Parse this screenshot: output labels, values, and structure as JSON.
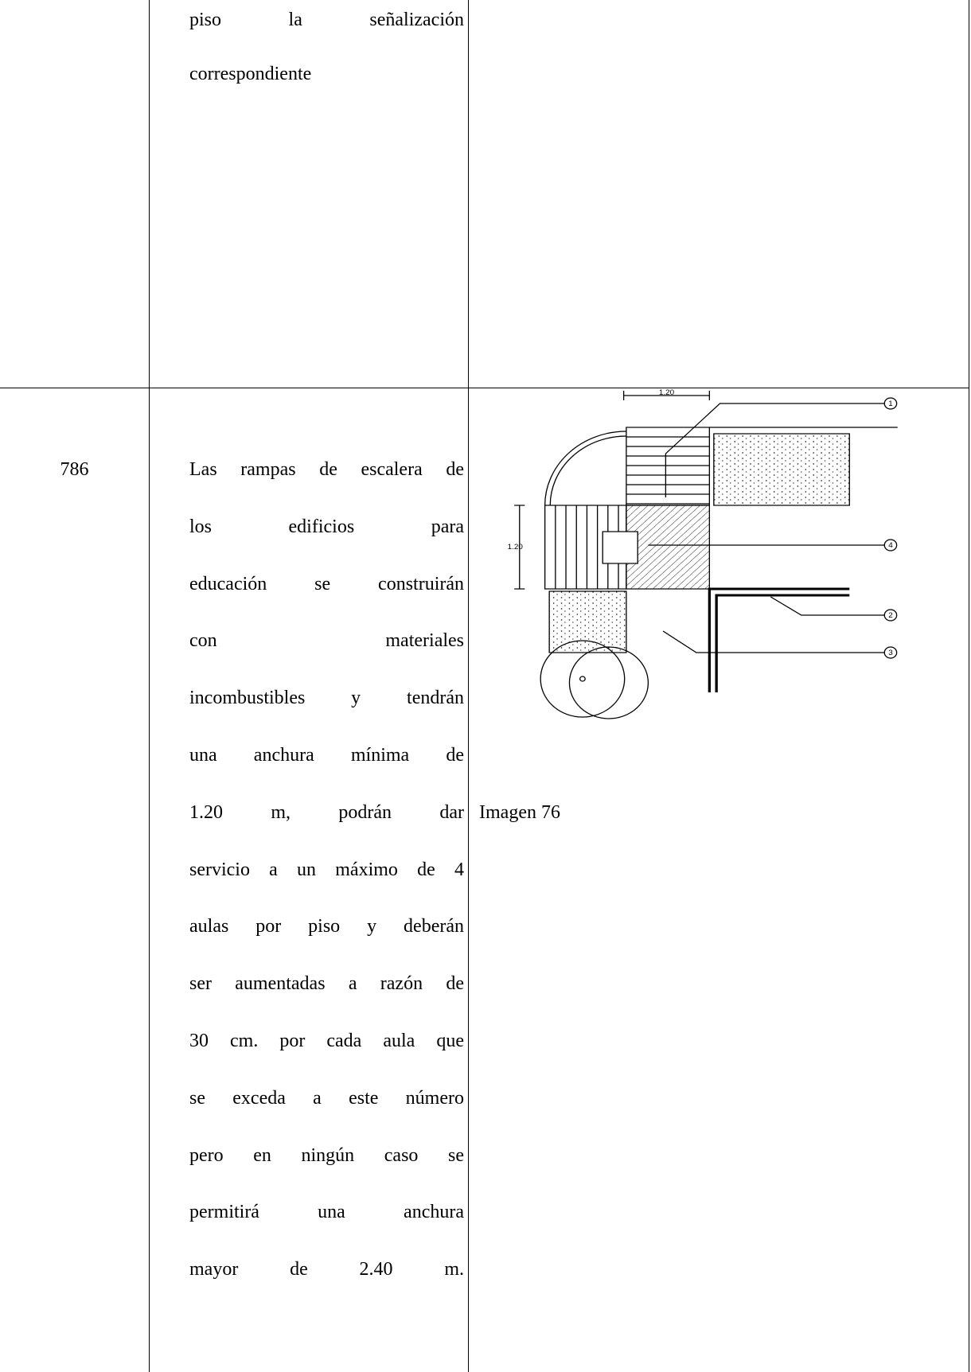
{
  "table": {
    "rows": [
      {
        "number": "",
        "lines": [
          "piso la señalización",
          "correspondiente"
        ]
      },
      {
        "number": "786",
        "lines": [
          "Las rampas de escalera de",
          "los edificios para",
          "educación se construirán",
          "con materiales",
          "incombustibles y tendrán",
          "una anchura mínima de",
          "1.20 m, podrán dar",
          "servicio a un máximo de 4",
          "aulas por piso y deberán",
          "ser aumentadas a razón de",
          "30 cm. por cada aula que",
          "se exceda a este número",
          "pero en ningún caso se",
          "permitirá una anchura",
          "mayor de 2.40 m."
        ],
        "figure": {
          "dimension": "1.20",
          "callouts": [
            "1",
            "2",
            "3",
            "4"
          ],
          "caption": "Imagen 76"
        }
      }
    ]
  }
}
